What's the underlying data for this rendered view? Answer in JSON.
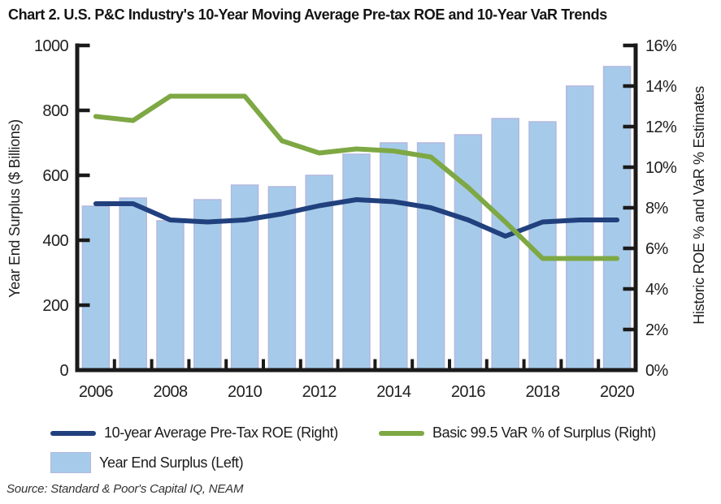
{
  "title": "Chart 2. U.S. P&C Industry's 10-Year Moving Average Pre-tax ROE and 10-Year VaR Trends",
  "source": "Source: Standard & Poor's Capital IQ, NEAM",
  "colors": {
    "bar_fill": "#a6cbea",
    "bar_edge": "#b3b8de",
    "roe_line": "#21407e",
    "var_line": "#7ea844",
    "axis": "#1a1a1a",
    "text": "#1f1f1f"
  },
  "legend": {
    "items": [
      {
        "swatch": "line-navy",
        "label": "10-year Average Pre-Tax ROE (Right)"
      },
      {
        "swatch": "line-green",
        "label": "Basic 99.5 VaR % of Surplus (Right)"
      },
      {
        "swatch": "bar-lightblue",
        "label": "Year End Surplus (Left)"
      }
    ]
  },
  "chart_data": {
    "type": "bar+line combo",
    "categories": [
      "2006",
      "2007",
      "2008",
      "2009",
      "2010",
      "2011",
      "2012",
      "2013",
      "2014",
      "2015",
      "2016",
      "2017",
      "2018",
      "2019",
      "2020"
    ],
    "x_tick_labels": [
      "2006",
      "2008",
      "2010",
      "2012",
      "2014",
      "2016",
      "2018",
      "2020"
    ],
    "series": [
      {
        "name": "Year End Surplus (Left)",
        "type": "bar",
        "axis": "left",
        "color_key": "bar_fill",
        "values": [
          505,
          530,
          460,
          525,
          570,
          565,
          600,
          665,
          700,
          700,
          725,
          775,
          765,
          875,
          935
        ]
      },
      {
        "name": "10-year Average Pre-Tax ROE (Right)",
        "type": "line",
        "axis": "right",
        "color_key": "roe_line",
        "values": [
          8.2,
          8.2,
          7.4,
          7.3,
          7.4,
          7.7,
          8.1,
          8.4,
          8.3,
          8.0,
          7.4,
          6.6,
          7.3,
          7.4,
          7.4
        ]
      },
      {
        "name": "Basic 99.5 VaR % of Surplus (Right)",
        "type": "line",
        "axis": "right",
        "color_key": "var_line",
        "values": [
          12.5,
          12.3,
          13.5,
          13.5,
          13.5,
          11.3,
          10.7,
          10.9,
          10.8,
          10.5,
          9.0,
          7.3,
          5.5,
          5.5,
          5.5
        ]
      }
    ],
    "left_axis": {
      "label": "Year End Surplus ($ Billions)",
      "min": 0,
      "max": 1000,
      "ticks": [
        0,
        200,
        400,
        600,
        800,
        1000
      ]
    },
    "right_axis": {
      "label": "Historic ROE % and VaR % Estimates",
      "min": 0,
      "max": 16,
      "ticks": [
        0,
        2,
        4,
        6,
        8,
        10,
        12,
        14,
        16
      ],
      "suffix": "%"
    },
    "grid": false,
    "legend_position": "bottom-left"
  }
}
